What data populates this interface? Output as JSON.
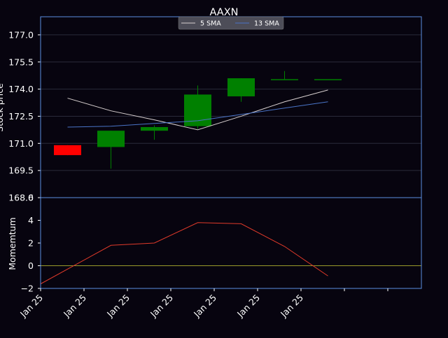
{
  "chart_data": [
    {
      "type": "candlestick",
      "title": "AAXN",
      "ylabel": "Stock price",
      "ylim": [
        168,
        178
      ],
      "yticks": [
        168.0,
        169.5,
        171.0,
        172.5,
        174.0,
        175.5,
        177.0
      ],
      "ytick_labels": [
        "168.0",
        "169.5",
        "171.0",
        "172.5",
        "174.0",
        "175.5",
        "177.0"
      ],
      "grid": true,
      "legend_position": "top-center",
      "candles": [
        {
          "open": 170.9,
          "high": 170.9,
          "low": 170.35,
          "close": 170.35,
          "color": "#ff0000"
        },
        {
          "open": 170.8,
          "high": 171.7,
          "low": 169.6,
          "close": 171.7,
          "color": "#008000"
        },
        {
          "open": 171.7,
          "high": 172.0,
          "low": 171.2,
          "close": 171.9,
          "color": "#008000"
        },
        {
          "open": 171.95,
          "high": 174.2,
          "low": 171.8,
          "close": 173.7,
          "color": "#008000"
        },
        {
          "open": 173.6,
          "high": 174.6,
          "low": 173.3,
          "close": 174.6,
          "color": "#008000"
        },
        {
          "open": 174.55,
          "high": 175.0,
          "low": 174.55,
          "close": 174.55,
          "color": "#008000"
        },
        {
          "open": 174.55,
          "high": 174.55,
          "low": 174.55,
          "close": 174.55,
          "color": "#008000"
        }
      ],
      "series": [
        {
          "name": "5 SMA",
          "color": "#d8d0d0",
          "values": [
            173.5,
            172.8,
            172.3,
            171.75,
            172.5,
            173.3,
            173.95
          ]
        },
        {
          "name": "13 SMA",
          "color": "#4a74c8",
          "values": [
            171.9,
            171.95,
            172.1,
            172.25,
            172.6,
            172.95,
            173.3
          ]
        }
      ]
    },
    {
      "type": "line",
      "ylabel": "Momemtum",
      "ylim": [
        -2,
        6
      ],
      "yticks": [
        -2,
        0,
        2,
        4,
        6
      ],
      "ytick_labels": [
        "−2",
        "0",
        "2",
        "4",
        "6"
      ],
      "xtick_labels": [
        "Jan 25",
        "Jan 25",
        "Jan 25",
        "Jan 25",
        "Jan 25",
        "Jan 25",
        "Jan 25",
        "",
        ""
      ],
      "zero_line_color": "#9a9a2a",
      "series": [
        {
          "color": "#e03a2a",
          "values": [
            -1.6,
            1.8,
            2.0,
            3.8,
            3.7,
            1.7,
            -0.9
          ]
        }
      ]
    }
  ],
  "colors": {
    "background": "#07040f",
    "axes_frame": "#5b8ee0",
    "grid": "#2a2a3a",
    "legend_bg": "#555560"
  }
}
